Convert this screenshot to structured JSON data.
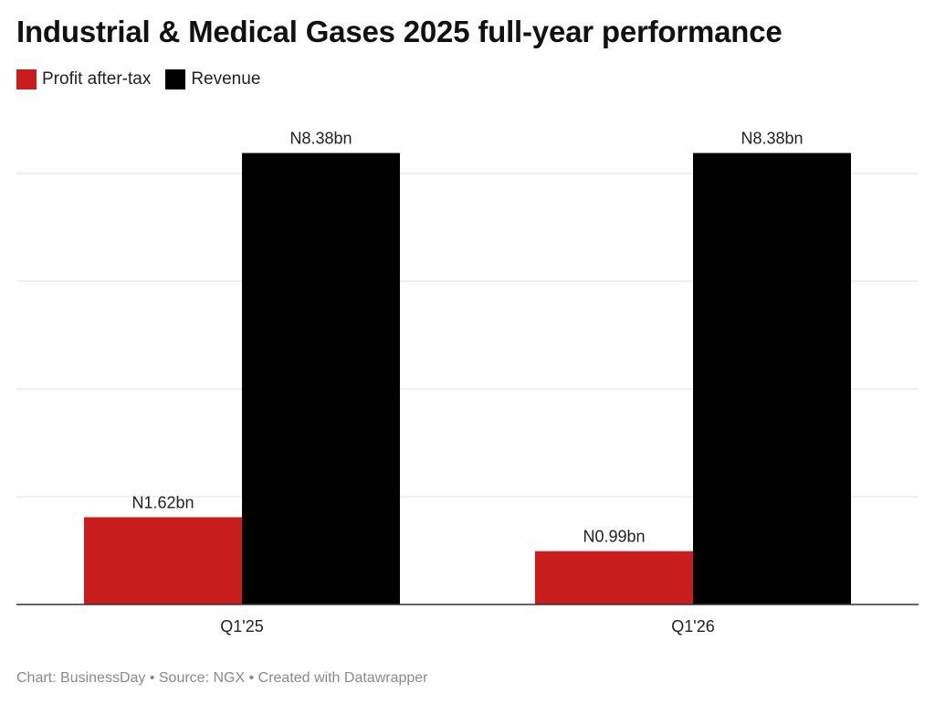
{
  "chart_data": {
    "type": "bar",
    "title": "Industrial & Medical Gases 2025 full-year performance",
    "categories": [
      "Q1'25",
      "Q1'26"
    ],
    "series": [
      {
        "name": "Profit after-tax",
        "color": "#c91d1d",
        "values": [
          1.62,
          0.99
        ],
        "labels": [
          "N1.62bn",
          "N0.99bn"
        ]
      },
      {
        "name": "Revenue",
        "color": "#000000",
        "values": [
          8.38,
          8.38
        ],
        "labels": [
          "N8.38bn",
          "N8.38bn"
        ]
      }
    ],
    "xlabel": "",
    "ylabel": "",
    "ylim": [
      0,
      8
    ]
  },
  "footer": {
    "text": "Chart: BusinessDay • Source: NGX • Created with Datawrapper"
  }
}
